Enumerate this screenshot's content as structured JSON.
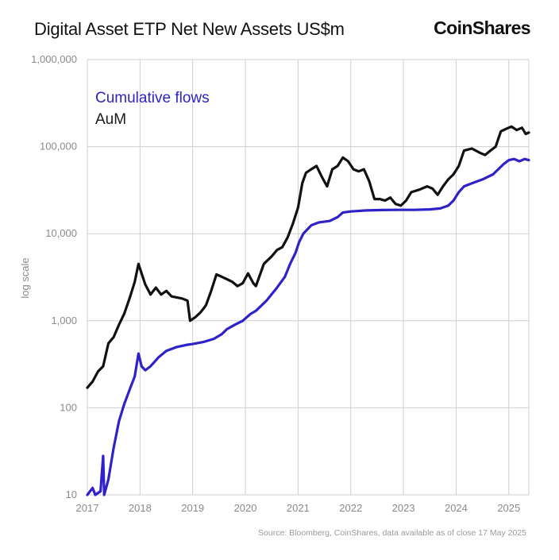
{
  "header": {
    "title": "Digital Asset ETP Net New Assets US$m",
    "brand": "CoinShares"
  },
  "source": "Source: Bloomberg, CoinShares, data available as of close 17 May 2025",
  "chart_data": {
    "type": "line",
    "title": "Digital Asset ETP Net New Assets US$m",
    "ylabel": "log scale",
    "yscale": "log",
    "ylim": [
      10,
      1000000
    ],
    "xlim": [
      2017.0,
      2025.38
    ],
    "y_ticks": [
      {
        "value": 1000000,
        "label": "1,000,000"
      },
      {
        "value": 100000,
        "label": "100,000"
      },
      {
        "value": 10000,
        "label": "10,000"
      },
      {
        "value": 1000,
        "label": "1,000"
      },
      {
        "value": 100,
        "label": "100"
      },
      {
        "value": 10,
        "label": "10"
      }
    ],
    "x_ticks": [
      "2017",
      "2018",
      "2019",
      "2020",
      "2021",
      "2022",
      "2023",
      "2024",
      "2025"
    ],
    "grid": true,
    "legend_position": "top-left",
    "series": [
      {
        "name": "Cumulative flows",
        "color": "#2e22c8",
        "points": [
          [
            2017.0,
            10
          ],
          [
            2017.1,
            12
          ],
          [
            2017.15,
            10
          ],
          [
            2017.25,
            11
          ],
          [
            2017.3,
            28
          ],
          [
            2017.32,
            10
          ],
          [
            2017.4,
            15
          ],
          [
            2017.5,
            35
          ],
          [
            2017.6,
            70
          ],
          [
            2017.7,
            110
          ],
          [
            2017.8,
            160
          ],
          [
            2017.9,
            230
          ],
          [
            2017.97,
            420
          ],
          [
            2018.03,
            300
          ],
          [
            2018.1,
            270
          ],
          [
            2018.2,
            300
          ],
          [
            2018.35,
            380
          ],
          [
            2018.5,
            450
          ],
          [
            2018.7,
            500
          ],
          [
            2018.9,
            530
          ],
          [
            2019.0,
            540
          ],
          [
            2019.2,
            570
          ],
          [
            2019.4,
            620
          ],
          [
            2019.55,
            700
          ],
          [
            2019.65,
            800
          ],
          [
            2019.8,
            900
          ],
          [
            2019.95,
            1000
          ],
          [
            2020.1,
            1200
          ],
          [
            2020.2,
            1300
          ],
          [
            2020.4,
            1700
          ],
          [
            2020.6,
            2400
          ],
          [
            2020.75,
            3200
          ],
          [
            2020.85,
            4500
          ],
          [
            2020.95,
            6000
          ],
          [
            2021.02,
            8000
          ],
          [
            2021.1,
            10000
          ],
          [
            2021.25,
            12500
          ],
          [
            2021.4,
            13500
          ],
          [
            2021.6,
            14000
          ],
          [
            2021.75,
            15500
          ],
          [
            2021.85,
            17500
          ],
          [
            2022.0,
            18000
          ],
          [
            2022.3,
            18500
          ],
          [
            2022.6,
            18700
          ],
          [
            2022.9,
            18800
          ],
          [
            2023.2,
            18800
          ],
          [
            2023.5,
            19000
          ],
          [
            2023.7,
            19500
          ],
          [
            2023.85,
            21000
          ],
          [
            2023.95,
            24000
          ],
          [
            2024.05,
            30000
          ],
          [
            2024.15,
            35000
          ],
          [
            2024.3,
            38000
          ],
          [
            2024.5,
            42000
          ],
          [
            2024.7,
            48000
          ],
          [
            2024.8,
            55000
          ],
          [
            2024.9,
            63000
          ],
          [
            2025.0,
            70000
          ],
          [
            2025.1,
            72000
          ],
          [
            2025.2,
            68000
          ],
          [
            2025.3,
            72000
          ],
          [
            2025.38,
            70000
          ]
        ]
      },
      {
        "name": "AuM",
        "color": "#111111",
        "points": [
          [
            2017.0,
            170
          ],
          [
            2017.1,
            200
          ],
          [
            2017.2,
            260
          ],
          [
            2017.3,
            300
          ],
          [
            2017.4,
            550
          ],
          [
            2017.5,
            650
          ],
          [
            2017.6,
            900
          ],
          [
            2017.7,
            1200
          ],
          [
            2017.8,
            1800
          ],
          [
            2017.9,
            2800
          ],
          [
            2017.97,
            4500
          ],
          [
            2018.05,
            3200
          ],
          [
            2018.1,
            2600
          ],
          [
            2018.2,
            2000
          ],
          [
            2018.3,
            2400
          ],
          [
            2018.4,
            2000
          ],
          [
            2018.5,
            2200
          ],
          [
            2018.6,
            1900
          ],
          [
            2018.8,
            1800
          ],
          [
            2018.9,
            1700
          ],
          [
            2018.95,
            1000
          ],
          [
            2019.05,
            1100
          ],
          [
            2019.15,
            1250
          ],
          [
            2019.25,
            1500
          ],
          [
            2019.35,
            2200
          ],
          [
            2019.45,
            3400
          ],
          [
            2019.55,
            3200
          ],
          [
            2019.65,
            3000
          ],
          [
            2019.75,
            2800
          ],
          [
            2019.85,
            2500
          ],
          [
            2019.95,
            2700
          ],
          [
            2020.05,
            3500
          ],
          [
            2020.15,
            2700
          ],
          [
            2020.2,
            2500
          ],
          [
            2020.35,
            4500
          ],
          [
            2020.5,
            5500
          ],
          [
            2020.6,
            6500
          ],
          [
            2020.7,
            7000
          ],
          [
            2020.8,
            9000
          ],
          [
            2020.9,
            13000
          ],
          [
            2021.0,
            20000
          ],
          [
            2021.08,
            38000
          ],
          [
            2021.15,
            50000
          ],
          [
            2021.25,
            55000
          ],
          [
            2021.35,
            60000
          ],
          [
            2021.45,
            45000
          ],
          [
            2021.55,
            35000
          ],
          [
            2021.65,
            55000
          ],
          [
            2021.75,
            60000
          ],
          [
            2021.85,
            75000
          ],
          [
            2021.95,
            68000
          ],
          [
            2022.05,
            55000
          ],
          [
            2022.15,
            52000
          ],
          [
            2022.25,
            55000
          ],
          [
            2022.35,
            40000
          ],
          [
            2022.45,
            25000
          ],
          [
            2022.55,
            25000
          ],
          [
            2022.65,
            24000
          ],
          [
            2022.75,
            26000
          ],
          [
            2022.85,
            22000
          ],
          [
            2022.95,
            21000
          ],
          [
            2023.05,
            24000
          ],
          [
            2023.15,
            30000
          ],
          [
            2023.3,
            32000
          ],
          [
            2023.45,
            35000
          ],
          [
            2023.55,
            33000
          ],
          [
            2023.65,
            28000
          ],
          [
            2023.75,
            35000
          ],
          [
            2023.85,
            42000
          ],
          [
            2023.95,
            48000
          ],
          [
            2024.05,
            60000
          ],
          [
            2024.15,
            90000
          ],
          [
            2024.3,
            95000
          ],
          [
            2024.45,
            85000
          ],
          [
            2024.55,
            80000
          ],
          [
            2024.65,
            90000
          ],
          [
            2024.75,
            100000
          ],
          [
            2024.85,
            150000
          ],
          [
            2024.95,
            160000
          ],
          [
            2025.05,
            170000
          ],
          [
            2025.15,
            155000
          ],
          [
            2025.25,
            165000
          ],
          [
            2025.32,
            140000
          ],
          [
            2025.38,
            145000
          ]
        ]
      }
    ]
  }
}
